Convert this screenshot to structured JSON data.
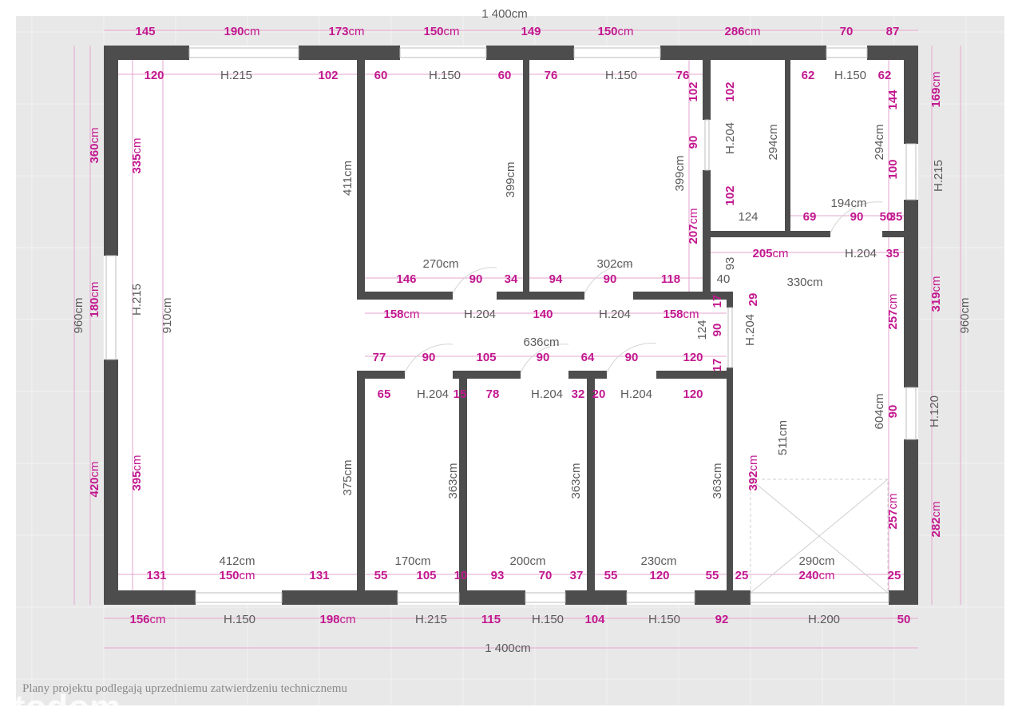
{
  "colors": {
    "background": "#e8e8e8",
    "wall": "#4d4d4d",
    "dimension": "#c2188f",
    "label": "#5a5a5a",
    "dimension_line": "#e6a6cf"
  },
  "top_total": "1 400cm",
  "bottom_total": "1 400cm",
  "footer_note": "Plany projektu podlegają uprzedniemu zatwierdzeniu technicznemu",
  "watermark": "otodom",
  "labels": [
    "145",
    "190cm",
    "173cm",
    "150cm",
    "149",
    "150cm",
    "286cm",
    "70",
    "87",
    "120",
    "H.215",
    "102",
    "60",
    "H.150",
    "60",
    "76",
    "H.150",
    "76",
    "62",
    "H.150",
    "62",
    "102",
    "102",
    "90",
    "H.204",
    "294cm",
    "399cm",
    "102",
    "207cm",
    "144",
    "294cm",
    "100",
    "169cm",
    "H.215",
    "360cm",
    "335cm",
    "411cm",
    "399cm",
    "H.215",
    "180cm",
    "960cm",
    "910cm",
    "124",
    "69",
    "194cm",
    "90",
    "50",
    "35",
    "205cm",
    "H.204",
    "35",
    "93",
    "40",
    "270cm",
    "302cm",
    "146",
    "90",
    "34",
    "94",
    "90",
    "118",
    "330cm",
    "158cm",
    "H.204",
    "140",
    "H.204",
    "158cm",
    "17",
    "29",
    "124",
    "90",
    "H.204",
    "17",
    "257cm",
    "319cm",
    "960cm",
    "636cm",
    "77",
    "90",
    "105",
    "90",
    "64",
    "90",
    "120",
    "65",
    "H.204",
    "15",
    "78",
    "H.204",
    "32",
    "20",
    "H.204",
    "120",
    "90",
    "H.120",
    "604cm",
    "511cm",
    "420cm",
    "395cm",
    "375cm",
    "363cm",
    "363cm",
    "363cm",
    "392cm",
    "257cm",
    "282cm",
    "412cm",
    "170cm",
    "200cm",
    "230cm",
    "290cm",
    "131",
    "150cm",
    "131",
    "55",
    "105",
    "10",
    "93",
    "70",
    "37",
    "55",
    "120",
    "55",
    "25",
    "240cm",
    "25",
    "156cm",
    "H.150",
    "198cm",
    "H.215",
    "115",
    "H.150",
    "104",
    "H.150",
    "92",
    "H.200",
    "50"
  ]
}
